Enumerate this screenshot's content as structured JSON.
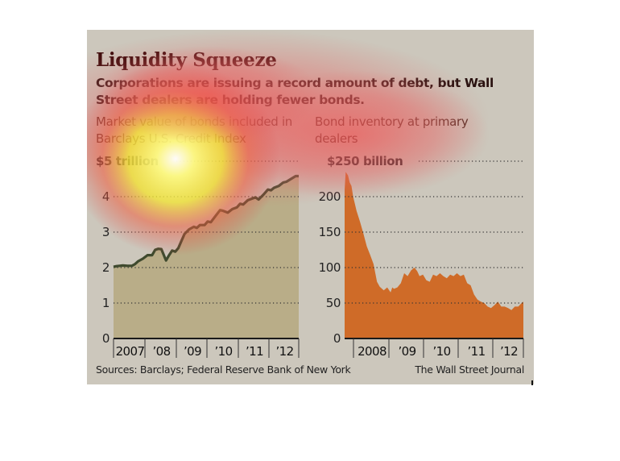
{
  "title": "Liquidity Squeeze",
  "subtitle": "Corporations are issuing a record amount of debt, but Wall Street dealers are holding fewer bonds.",
  "sources": "Sources: Barclays; Federal Reserve Bank of New York",
  "credit": "The Wall Street Journal",
  "colors": {
    "panel_bg": "#ccc7bc",
    "left_fill": "#b9ad88",
    "left_line": "#3f4a2e",
    "right_fill": "#cf6b28",
    "grid": "#333333"
  },
  "chart_data": [
    {
      "type": "area",
      "title": "Market value of bonds included in Barclays U.S. Credit Index",
      "ylabel": "",
      "unit_top_label": "$5 trillion",
      "ylim": [
        0,
        5
      ],
      "yticks": [
        0,
        1,
        2,
        3,
        4,
        5
      ],
      "ytick_labels": [
        "0",
        "1",
        "2",
        "3",
        "4",
        "$5 trillion"
      ],
      "xlim": [
        2007.0,
        2013.0
      ],
      "xtick_labels": [
        "2007",
        "’08",
        "’09",
        "’10",
        "’11",
        "’12"
      ],
      "grid": true,
      "series": [
        {
          "name": "Market value",
          "x": [
            2007.0,
            2007.1,
            2007.2,
            2007.3,
            2007.45,
            2007.6,
            2007.7,
            2007.8,
            2007.95,
            2008.1,
            2008.25,
            2008.35,
            2008.45,
            2008.55,
            2008.7,
            2008.8,
            2008.9,
            2009.0,
            2009.1,
            2009.2,
            2009.3,
            2009.45,
            2009.6,
            2009.7,
            2009.8,
            2009.95,
            2010.05,
            2010.15,
            2010.3,
            2010.45,
            2010.55,
            2010.7,
            2010.85,
            2011.0,
            2011.1,
            2011.2,
            2011.35,
            2011.5,
            2011.6,
            2011.7,
            2011.85,
            2012.0,
            2012.1,
            2012.2,
            2012.35,
            2012.5,
            2012.6,
            2012.75,
            2012.9,
            2013.0
          ],
          "values": [
            2.02,
            2.04,
            2.05,
            2.06,
            2.05,
            2.05,
            2.1,
            2.18,
            2.25,
            2.35,
            2.35,
            2.5,
            2.53,
            2.52,
            2.2,
            2.35,
            2.48,
            2.45,
            2.55,
            2.75,
            2.95,
            3.08,
            3.15,
            3.12,
            3.2,
            3.2,
            3.3,
            3.28,
            3.45,
            3.62,
            3.6,
            3.55,
            3.65,
            3.7,
            3.8,
            3.78,
            3.9,
            3.95,
            3.98,
            3.92,
            4.05,
            4.2,
            4.18,
            4.25,
            4.3,
            4.4,
            4.42,
            4.5,
            4.58,
            4.58
          ]
        }
      ]
    },
    {
      "type": "area",
      "title": "Bond inventory at primary dealers",
      "ylabel": "",
      "unit_top_label": "$250 billion",
      "ylim": [
        0,
        250
      ],
      "yticks": [
        0,
        50,
        100,
        150,
        200,
        250
      ],
      "ytick_labels": [
        "0",
        "50",
        "100",
        "150",
        "200",
        "$250 billion"
      ],
      "xlim": [
        2007.75,
        2013.0
      ],
      "xtick_labels": [
        "2008",
        "’09",
        "’10",
        "’11",
        "’12"
      ],
      "grid": true,
      "series": [
        {
          "name": "Bond inventory",
          "x": [
            2007.75,
            2007.78,
            2007.85,
            2007.9,
            2007.95,
            2008.0,
            2008.05,
            2008.1,
            2008.2,
            2008.3,
            2008.4,
            2008.5,
            2008.6,
            2008.7,
            2008.78,
            2008.85,
            2008.9,
            2009.0,
            2009.1,
            2009.15,
            2009.2,
            2009.3,
            2009.4,
            2009.5,
            2009.6,
            2009.7,
            2009.8,
            2009.88,
            2009.95,
            2010.05,
            2010.15,
            2010.25,
            2010.35,
            2010.45,
            2010.55,
            2010.65,
            2010.75,
            2010.85,
            2010.95,
            2011.05,
            2011.15,
            2011.25,
            2011.35,
            2011.45,
            2011.55,
            2011.65,
            2011.75,
            2011.85,
            2011.95,
            2012.05,
            2012.15,
            2012.25,
            2012.35,
            2012.45,
            2012.55,
            2012.65,
            2012.75,
            2012.85,
            2012.95,
            2013.0
          ],
          "values": [
            210,
            235,
            230,
            220,
            215,
            200,
            190,
            180,
            165,
            148,
            130,
            118,
            105,
            80,
            73,
            70,
            68,
            72,
            65,
            72,
            70,
            72,
            78,
            92,
            88,
            96,
            100,
            95,
            88,
            90,
            82,
            80,
            90,
            88,
            92,
            88,
            85,
            90,
            88,
            92,
            88,
            90,
            78,
            75,
            62,
            55,
            52,
            50,
            45,
            43,
            47,
            52,
            45,
            45,
            43,
            40,
            45,
            45,
            50,
            52
          ]
        }
      ]
    }
  ]
}
